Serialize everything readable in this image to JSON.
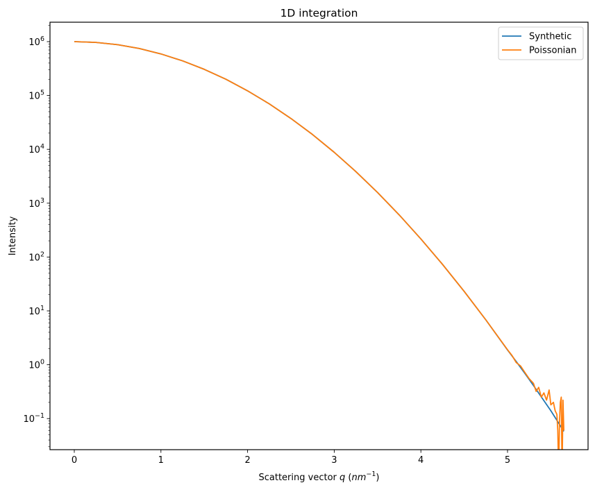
{
  "chart_data": {
    "type": "line",
    "title": "1D integration",
    "xlabel": "Scattering vector q (nm^-1)",
    "xlabel_parts": {
      "pre": "Scattering vector ",
      "var": "q",
      "open": " (",
      "unit": "nm",
      "sup": "−1",
      "close": ")"
    },
    "ylabel": "Intensity",
    "yscale": "log",
    "xlim": [
      -0.28,
      5.93
    ],
    "ylim": [
      0.025,
      2300000
    ],
    "grid": false,
    "legend_position": "upper right",
    "x_ticks": [
      0,
      1,
      2,
      3,
      4,
      5
    ],
    "x_tick_labels": [
      "0",
      "1",
      "2",
      "3",
      "4",
      "5"
    ],
    "y_ticks": [
      0.1,
      1,
      10,
      100,
      1000,
      10000,
      100000,
      1000000
    ],
    "y_tick_labels": [
      {
        "base": "10",
        "exp": "−1"
      },
      {
        "base": "10",
        "exp": "0"
      },
      {
        "base": "10",
        "exp": "1"
      },
      {
        "base": "10",
        "exp": "2"
      },
      {
        "base": "10",
        "exp": "3"
      },
      {
        "base": "10",
        "exp": "4"
      },
      {
        "base": "10",
        "exp": "5"
      },
      {
        "base": "10",
        "exp": "6"
      }
    ],
    "series": [
      {
        "name": "Synthetic",
        "color": "#1f77b4",
        "x": [
          0.0,
          0.25,
          0.5,
          0.75,
          1.0,
          1.25,
          1.5,
          1.75,
          2.0,
          2.25,
          2.5,
          2.75,
          3.0,
          3.25,
          3.5,
          3.75,
          4.0,
          4.25,
          4.5,
          4.75,
          5.0,
          5.1,
          5.2,
          5.3,
          5.4,
          5.5,
          5.6,
          5.65
        ],
        "values": [
          1000000,
          968000,
          878000,
          745000,
          592000,
          440000,
          306000,
          200000,
          122000,
          70000,
          37500,
          18800,
          8800,
          3860,
          1580,
          605,
          217,
          73,
          23,
          6.8,
          1.88,
          1.15,
          0.69,
          0.41,
          0.24,
          0.14,
          0.078,
          0.058
        ]
      },
      {
        "name": "Poissonian",
        "color": "#ff7f0e",
        "x": [
          0.0,
          0.25,
          0.5,
          0.75,
          1.0,
          1.25,
          1.5,
          1.75,
          2.0,
          2.25,
          2.5,
          2.75,
          3.0,
          3.25,
          3.5,
          3.75,
          4.0,
          4.25,
          4.5,
          4.75,
          5.0,
          5.05,
          5.1,
          5.15,
          5.2,
          5.25,
          5.3,
          5.33,
          5.36,
          5.39,
          5.42,
          5.45,
          5.48,
          5.5,
          5.53,
          5.55,
          5.57,
          5.58,
          5.59,
          5.6,
          5.61,
          5.62,
          5.63,
          5.64,
          5.65
        ],
        "values": [
          1000000,
          968000,
          878000,
          745000,
          592000,
          440000,
          306000,
          200000,
          122000,
          70000,
          37500,
          18800,
          8800,
          3860,
          1580,
          605,
          217,
          73,
          23,
          6.8,
          1.9,
          1.5,
          1.1,
          0.95,
          0.72,
          0.55,
          0.45,
          0.32,
          0.38,
          0.25,
          0.3,
          0.22,
          0.34,
          0.18,
          0.2,
          0.14,
          0.12,
          0.06,
          0.01,
          0.09,
          0.2,
          0.25,
          0.01,
          0.22,
          0.06
        ]
      }
    ]
  }
}
